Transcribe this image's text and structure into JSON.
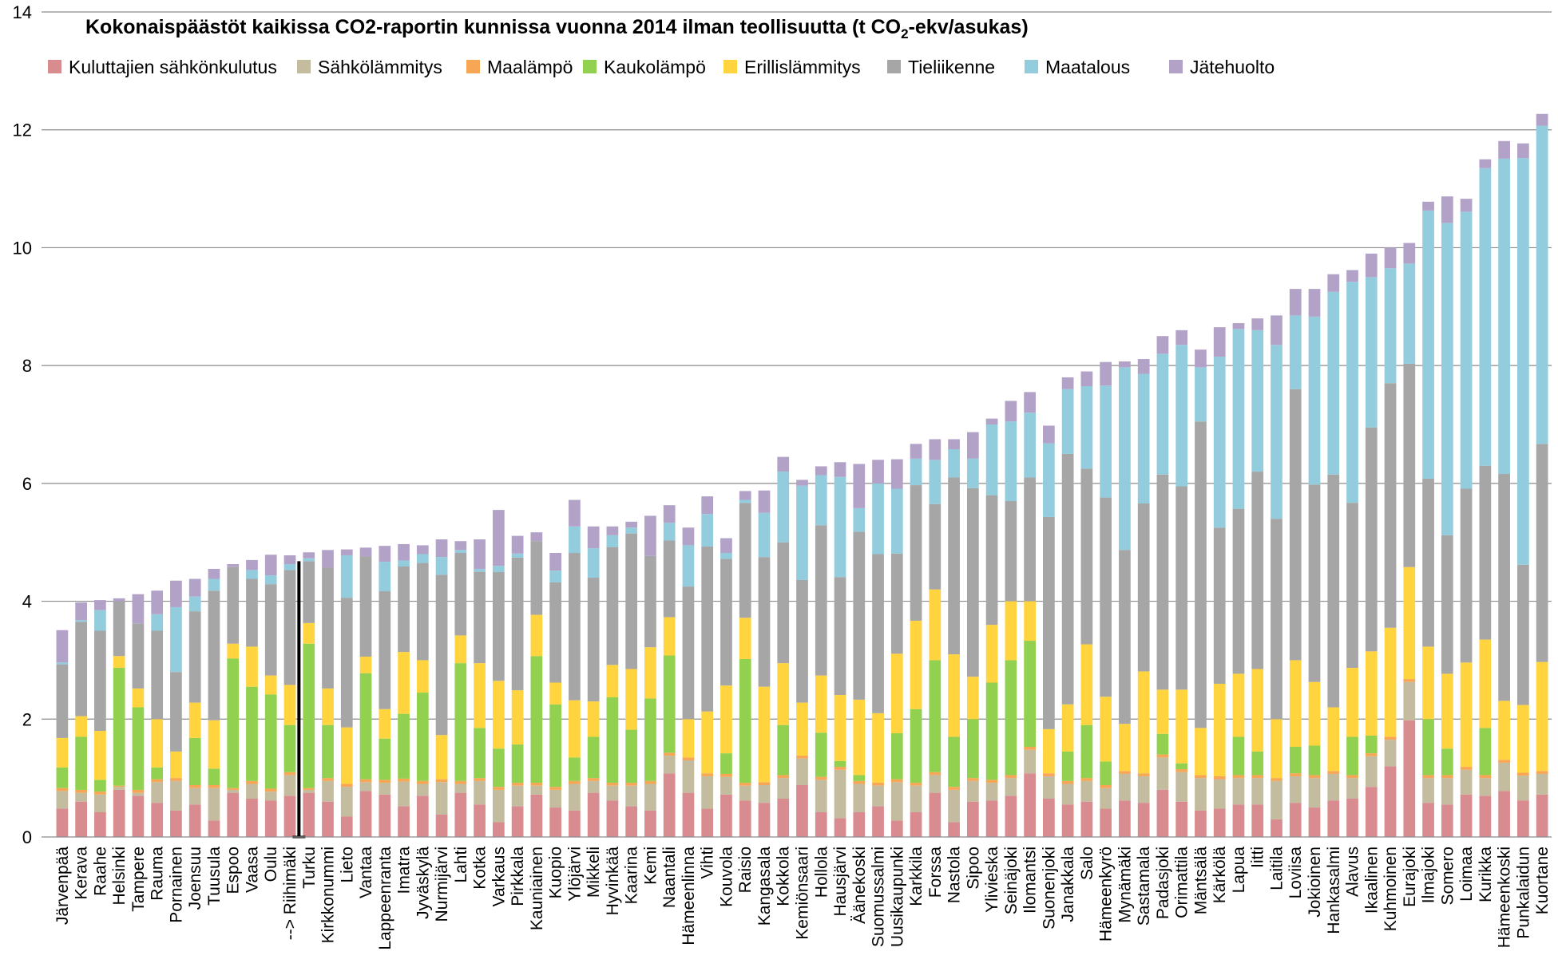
{
  "chart_data": {
    "type": "bar",
    "stacked": true,
    "title": "Kokonaispäästöt kaikissa CO2-raportin kunnissa vuonna 2014 ilman teollisuutta (t CO",
    "title_sub": "2",
    "title_end": "-ekv/asukas)",
    "xlabel": "",
    "ylabel": "",
    "ylim": [
      0,
      14
    ],
    "yticks": [
      0,
      2,
      4,
      6,
      8,
      10,
      12,
      14
    ],
    "grid": true,
    "legend_position": "top",
    "highlight_category": "--> Riihimäki",
    "categories": [
      "Järvenpää",
      "Kerava",
      "Raahe",
      "Helsinki",
      "Tampere",
      "Rauma",
      "Pornainen",
      "Joensuu",
      "Tuusula",
      "Espoo",
      "Vaasa",
      "Oulu",
      "--> Riihimäki",
      "Turku",
      "Kirkkonummi",
      "Lieto",
      "Vantaa",
      "Lappeenranta",
      "Imatra",
      "Jyväskylä",
      "Nurmijärvi",
      "Lahti",
      "Kotka",
      "Varkaus",
      "Pirkkala",
      "Kauniainen",
      "Kuopio",
      "Ylöjärvi",
      "Mikkeli",
      "Hyvinkää",
      "Kaarina",
      "Kemi",
      "Naantali",
      "Hämeenlinna",
      "Vihti",
      "Kouvola",
      "Raisio",
      "Kangasala",
      "Kokkola",
      "Kemiönsaari",
      "Hollola",
      "Hausjärvi",
      "Äänekoski",
      "Suomussalmi",
      "Uusikaupunki",
      "Karkkila",
      "Forssa",
      "Nastola",
      "Sipoo",
      "Ylivieska",
      "Seinäjoki",
      "Ilomantsi",
      "Suonenjoki",
      "Janakkala",
      "Salo",
      "Hämeenkyrö",
      "Mynämäki",
      "Sastamala",
      "Padasjoki",
      "Orimattila",
      "Mäntsälä",
      "Kärkölä",
      "Lapua",
      "Iitti",
      "Laitila",
      "Loviisa",
      "Jokioinen",
      "Hankasalmi",
      "Alavus",
      "Ikaalinen",
      "Kuhmoinen",
      "Eurajoki",
      "Ilmajoki",
      "Somero",
      "Loimaa",
      "Kurikka",
      "Hämeenkoski",
      "Punkalaidun",
      "Kuortane"
    ],
    "series": [
      {
        "name": "Kuluttajien sähkönkulutus",
        "color": "#d98c8f",
        "values": [
          0.48,
          0.6,
          0.42,
          0.8,
          0.7,
          0.58,
          0.45,
          0.55,
          0.28,
          0.75,
          0.65,
          0.62,
          0.7,
          0.75,
          0.6,
          0.35,
          0.78,
          0.72,
          0.52,
          0.7,
          0.38,
          0.75,
          0.55,
          0.25,
          0.52,
          0.72,
          0.5,
          0.45,
          0.75,
          0.62,
          0.52,
          0.45,
          1.08,
          0.75,
          0.48,
          0.72,
          0.62,
          0.58,
          0.65,
          0.88,
          0.42,
          0.32,
          0.42,
          0.52,
          0.28,
          0.42,
          0.75,
          0.25,
          0.6,
          0.62,
          0.7,
          1.08,
          0.65,
          0.55,
          0.6,
          0.48,
          0.62,
          0.58,
          0.8,
          0.6,
          0.45,
          0.48,
          0.55,
          0.55,
          0.3,
          0.58,
          0.5,
          0.62,
          0.65,
          0.85,
          1.2,
          1.98,
          0.58,
          0.55,
          0.72,
          0.7,
          0.78,
          0.62,
          0.72
        ]
      },
      {
        "name": "Sähkölämmitys",
        "color": "#c3bc9e",
        "values": [
          0.3,
          0.15,
          0.3,
          0.05,
          0.05,
          0.35,
          0.5,
          0.28,
          0.55,
          0.05,
          0.25,
          0.15,
          0.35,
          0.05,
          0.35,
          0.5,
          0.15,
          0.2,
          0.42,
          0.2,
          0.55,
          0.15,
          0.4,
          0.55,
          0.35,
          0.15,
          0.3,
          0.45,
          0.2,
          0.25,
          0.35,
          0.45,
          0.3,
          0.55,
          0.55,
          0.3,
          0.25,
          0.3,
          0.35,
          0.45,
          0.55,
          0.82,
          0.48,
          0.35,
          0.65,
          0.45,
          0.3,
          0.55,
          0.35,
          0.3,
          0.3,
          0.4,
          0.38,
          0.35,
          0.35,
          0.35,
          0.45,
          0.45,
          0.55,
          0.5,
          0.55,
          0.5,
          0.45,
          0.45,
          0.65,
          0.45,
          0.5,
          0.45,
          0.35,
          0.52,
          0.45,
          0.65,
          0.42,
          0.45,
          0.42,
          0.3,
          0.48,
          0.42,
          0.35
        ]
      },
      {
        "name": "Maalämpö",
        "color": "#f7a656",
        "values": [
          0.05,
          0.05,
          0.05,
          0.02,
          0.05,
          0.05,
          0.05,
          0.05,
          0.05,
          0.03,
          0.05,
          0.05,
          0.05,
          0.03,
          0.05,
          0.05,
          0.05,
          0.05,
          0.05,
          0.05,
          0.05,
          0.05,
          0.05,
          0.05,
          0.05,
          0.05,
          0.05,
          0.05,
          0.05,
          0.05,
          0.05,
          0.05,
          0.05,
          0.05,
          0.05,
          0.05,
          0.05,
          0.05,
          0.05,
          0.05,
          0.05,
          0.05,
          0.05,
          0.05,
          0.05,
          0.05,
          0.05,
          0.05,
          0.05,
          0.05,
          0.05,
          0.05,
          0.05,
          0.05,
          0.05,
          0.05,
          0.05,
          0.05,
          0.05,
          0.05,
          0.05,
          0.05,
          0.05,
          0.05,
          0.05,
          0.05,
          0.05,
          0.05,
          0.05,
          0.05,
          0.05,
          0.05,
          0.05,
          0.05,
          0.05,
          0.05,
          0.05,
          0.05,
          0.05
        ]
      },
      {
        "name": "Kaukolämpö",
        "color": "#92d050",
        "values": [
          0.35,
          0.9,
          0.2,
          2.0,
          1.4,
          0.2,
          0.0,
          0.8,
          0.28,
          2.2,
          1.6,
          1.6,
          0.8,
          2.45,
          0.9,
          0.0,
          1.8,
          0.7,
          1.1,
          1.5,
          0.0,
          2.0,
          0.85,
          0.65,
          0.65,
          2.15,
          1.4,
          0.4,
          0.7,
          1.45,
          0.9,
          1.4,
          1.65,
          0.0,
          0.0,
          0.35,
          2.1,
          0.0,
          0.85,
          0.0,
          0.75,
          0.1,
          0.1,
          0.0,
          0.78,
          1.25,
          1.9,
          0.85,
          1.0,
          1.65,
          1.95,
          1.8,
          0.0,
          0.5,
          0.9,
          0.4,
          0.0,
          0.0,
          0.35,
          0.1,
          0.0,
          0.0,
          0.65,
          0.4,
          0.0,
          0.45,
          0.5,
          0.0,
          0.65,
          0.3,
          0.0,
          0.0,
          0.95,
          0.45,
          0.0,
          0.8,
          0.0,
          0.0,
          0.0
        ]
      },
      {
        "name": "Erillislämmitys",
        "color": "#ffd43f",
        "values": [
          0.5,
          0.35,
          0.83,
          0.2,
          0.32,
          0.82,
          0.45,
          0.6,
          0.82,
          0.25,
          0.68,
          0.32,
          0.68,
          0.35,
          0.62,
          0.96,
          0.28,
          0.5,
          1.05,
          0.55,
          0.75,
          0.47,
          1.1,
          1.15,
          0.92,
          0.7,
          0.37,
          0.97,
          0.6,
          0.55,
          1.03,
          0.87,
          0.65,
          0.65,
          1.05,
          1.15,
          0.7,
          1.62,
          1.05,
          0.9,
          0.97,
          1.12,
          1.28,
          1.18,
          1.35,
          1.5,
          1.2,
          1.4,
          0.72,
          0.98,
          1.0,
          0.67,
          0.75,
          0.8,
          1.37,
          1.1,
          0.8,
          1.73,
          0.75,
          1.25,
          0.8,
          1.57,
          1.07,
          1.4,
          1.0,
          1.47,
          1.08,
          1.08,
          1.17,
          1.43,
          1.85,
          1.9,
          1.23,
          1.27,
          1.77,
          1.5,
          1.0,
          1.15,
          1.85
        ]
      },
      {
        "name": "Tieliikenne",
        "color": "#a6a6a6",
        "values": [
          1.25,
          1.6,
          1.7,
          0.93,
          1.1,
          1.5,
          1.35,
          1.55,
          2.2,
          1.3,
          1.15,
          1.55,
          1.95,
          1.05,
          2.05,
          2.2,
          1.7,
          2.0,
          1.45,
          1.65,
          2.72,
          1.4,
          1.55,
          1.85,
          2.25,
          1.25,
          1.7,
          2.5,
          2.1,
          2.0,
          2.3,
          1.55,
          1.3,
          2.25,
          2.8,
          2.15,
          1.95,
          2.2,
          2.05,
          2.08,
          2.55,
          2.0,
          2.85,
          2.7,
          1.7,
          2.3,
          1.45,
          3.0,
          3.2,
          2.2,
          1.7,
          2.1,
          3.6,
          4.25,
          2.98,
          3.38,
          2.95,
          2.85,
          3.65,
          3.45,
          5.2,
          2.65,
          2.8,
          3.35,
          3.4,
          4.6,
          3.35,
          3.95,
          2.8,
          3.8,
          4.15,
          3.45,
          2.85,
          2.35,
          2.95,
          2.95,
          3.85,
          2.38,
          3.7
        ]
      },
      {
        "name": "Maatalous",
        "color": "#93cddd",
        "values": [
          0.03,
          0.03,
          0.35,
          0.0,
          0.0,
          0.28,
          1.1,
          0.25,
          0.2,
          0.0,
          0.15,
          0.15,
          0.1,
          0.05,
          0.0,
          0.72,
          0.0,
          0.5,
          0.1,
          0.15,
          0.3,
          0.05,
          0.05,
          0.1,
          0.07,
          0.0,
          0.2,
          0.45,
          0.5,
          0.2,
          0.1,
          0.0,
          0.3,
          0.7,
          0.55,
          0.1,
          0.05,
          0.75,
          1.2,
          1.6,
          0.85,
          1.7,
          0.4,
          1.2,
          1.1,
          0.45,
          0.75,
          0.48,
          0.5,
          1.2,
          1.35,
          1.1,
          1.25,
          1.1,
          1.4,
          1.9,
          3.1,
          2.2,
          2.05,
          2.4,
          0.92,
          2.9,
          3.05,
          2.4,
          2.95,
          1.25,
          2.85,
          3.1,
          3.75,
          2.55,
          1.95,
          1.7,
          4.55,
          5.3,
          4.7,
          5.05,
          5.35,
          6.9,
          5.4
        ]
      },
      {
        "name": "Jätehuolto",
        "color": "#b3a2c7",
        "values": [
          0.55,
          0.3,
          0.17,
          0.05,
          0.5,
          0.4,
          0.45,
          0.3,
          0.17,
          0.05,
          0.17,
          0.35,
          0.15,
          0.1,
          0.3,
          0.1,
          0.15,
          0.27,
          0.28,
          0.15,
          0.3,
          0.15,
          0.5,
          0.95,
          0.3,
          0.15,
          0.3,
          0.45,
          0.37,
          0.15,
          0.1,
          0.68,
          0.3,
          0.3,
          0.3,
          0.25,
          0.15,
          0.38,
          0.25,
          0.1,
          0.15,
          0.25,
          0.75,
          0.4,
          0.5,
          0.25,
          0.35,
          0.17,
          0.45,
          0.1,
          0.35,
          0.35,
          0.3,
          0.2,
          0.25,
          0.4,
          0.1,
          0.25,
          0.3,
          0.25,
          0.3,
          0.5,
          0.1,
          0.2,
          0.5,
          0.45,
          0.47,
          0.3,
          0.2,
          0.4,
          0.35,
          0.35,
          0.15,
          0.45,
          0.22,
          0.15,
          0.3,
          0.25,
          0.2
        ]
      }
    ]
  }
}
